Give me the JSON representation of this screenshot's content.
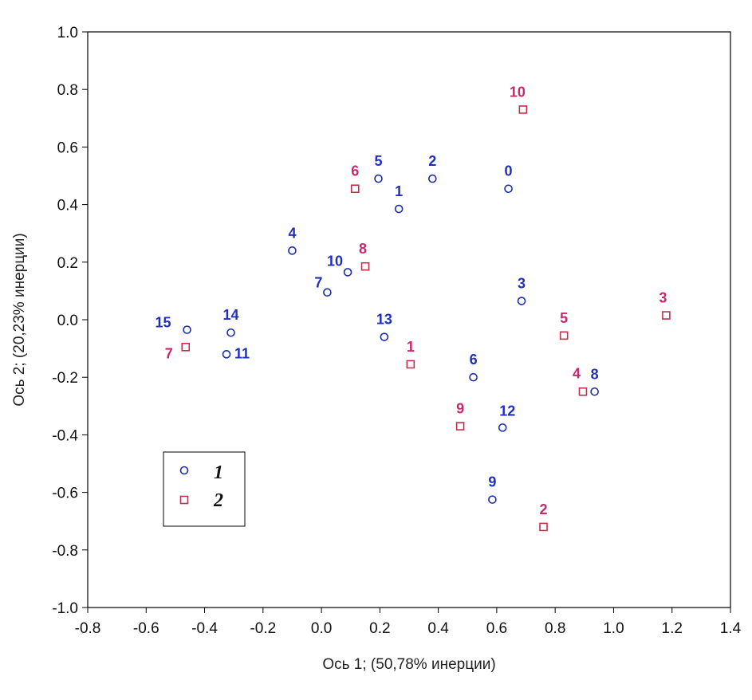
{
  "chart_data": {
    "type": "scatter",
    "xlabel": "Ось 1; (50,78% инерции)",
    "ylabel": "Ось 2; (20,23% инерции)",
    "xlim": [
      -0.8,
      1.4
    ],
    "ylim": [
      -1.0,
      1.0
    ],
    "xticks": [
      "-0.8",
      "-0.6",
      "-0.4",
      "-0.2",
      "0.0",
      "0.2",
      "0.4",
      "0.6",
      "0.8",
      "1.0",
      "1.2",
      "1.4"
    ],
    "yticks": [
      "-1.0",
      "-0.8",
      "-0.6",
      "-0.4",
      "-0.2",
      "0.0",
      "0.2",
      "0.4",
      "0.6",
      "0.8",
      "1.0"
    ],
    "grid": false,
    "legend_position": "bottom-left",
    "series": [
      {
        "name": "1",
        "marker": "circle",
        "color": "#1c2fa8",
        "points": [
          {
            "label": "0",
            "x": 0.64,
            "y": 0.455
          },
          {
            "label": "1",
            "x": 0.265,
            "y": 0.385
          },
          {
            "label": "2",
            "x": 0.38,
            "y": 0.49
          },
          {
            "label": "3",
            "x": 0.685,
            "y": 0.065
          },
          {
            "label": "4",
            "x": -0.1,
            "y": 0.24
          },
          {
            "label": "5",
            "x": 0.195,
            "y": 0.49
          },
          {
            "label": "6",
            "x": 0.52,
            "y": -0.2
          },
          {
            "label": "7",
            "x": 0.02,
            "y": 0.095
          },
          {
            "label": "8",
            "x": 0.935,
            "y": -0.25
          },
          {
            "label": "9",
            "x": 0.585,
            "y": -0.625
          },
          {
            "label": "10",
            "x": 0.09,
            "y": 0.165
          },
          {
            "label": "11",
            "x": -0.325,
            "y": -0.12
          },
          {
            "label": "12",
            "x": 0.62,
            "y": -0.375
          },
          {
            "label": "13",
            "x": 0.215,
            "y": -0.06
          },
          {
            "label": "14",
            "x": -0.31,
            "y": -0.045
          },
          {
            "label": "15",
            "x": -0.46,
            "y": -0.035
          }
        ]
      },
      {
        "name": "2",
        "marker": "square",
        "color": "#c0304a",
        "points": [
          {
            "label": "1",
            "x": 0.305,
            "y": -0.155
          },
          {
            "label": "2",
            "x": 0.76,
            "y": -0.72
          },
          {
            "label": "3",
            "x": 1.18,
            "y": 0.015
          },
          {
            "label": "4",
            "x": 0.895,
            "y": -0.25
          },
          {
            "label": "5",
            "x": 0.83,
            "y": -0.055
          },
          {
            "label": "6",
            "x": 0.115,
            "y": 0.455
          },
          {
            "label": "7",
            "x": -0.465,
            "y": -0.095
          },
          {
            "label": "8",
            "x": 0.15,
            "y": 0.185
          },
          {
            "label": "9",
            "x": 0.475,
            "y": -0.37
          },
          {
            "label": "10",
            "x": 0.69,
            "y": 0.73
          }
        ]
      }
    ]
  },
  "colors": {
    "series1_label": "#1f2fbf",
    "series2_label": "#c8286e",
    "series1_marker": "#1c2fa8",
    "series2_marker": "#c0304a"
  }
}
